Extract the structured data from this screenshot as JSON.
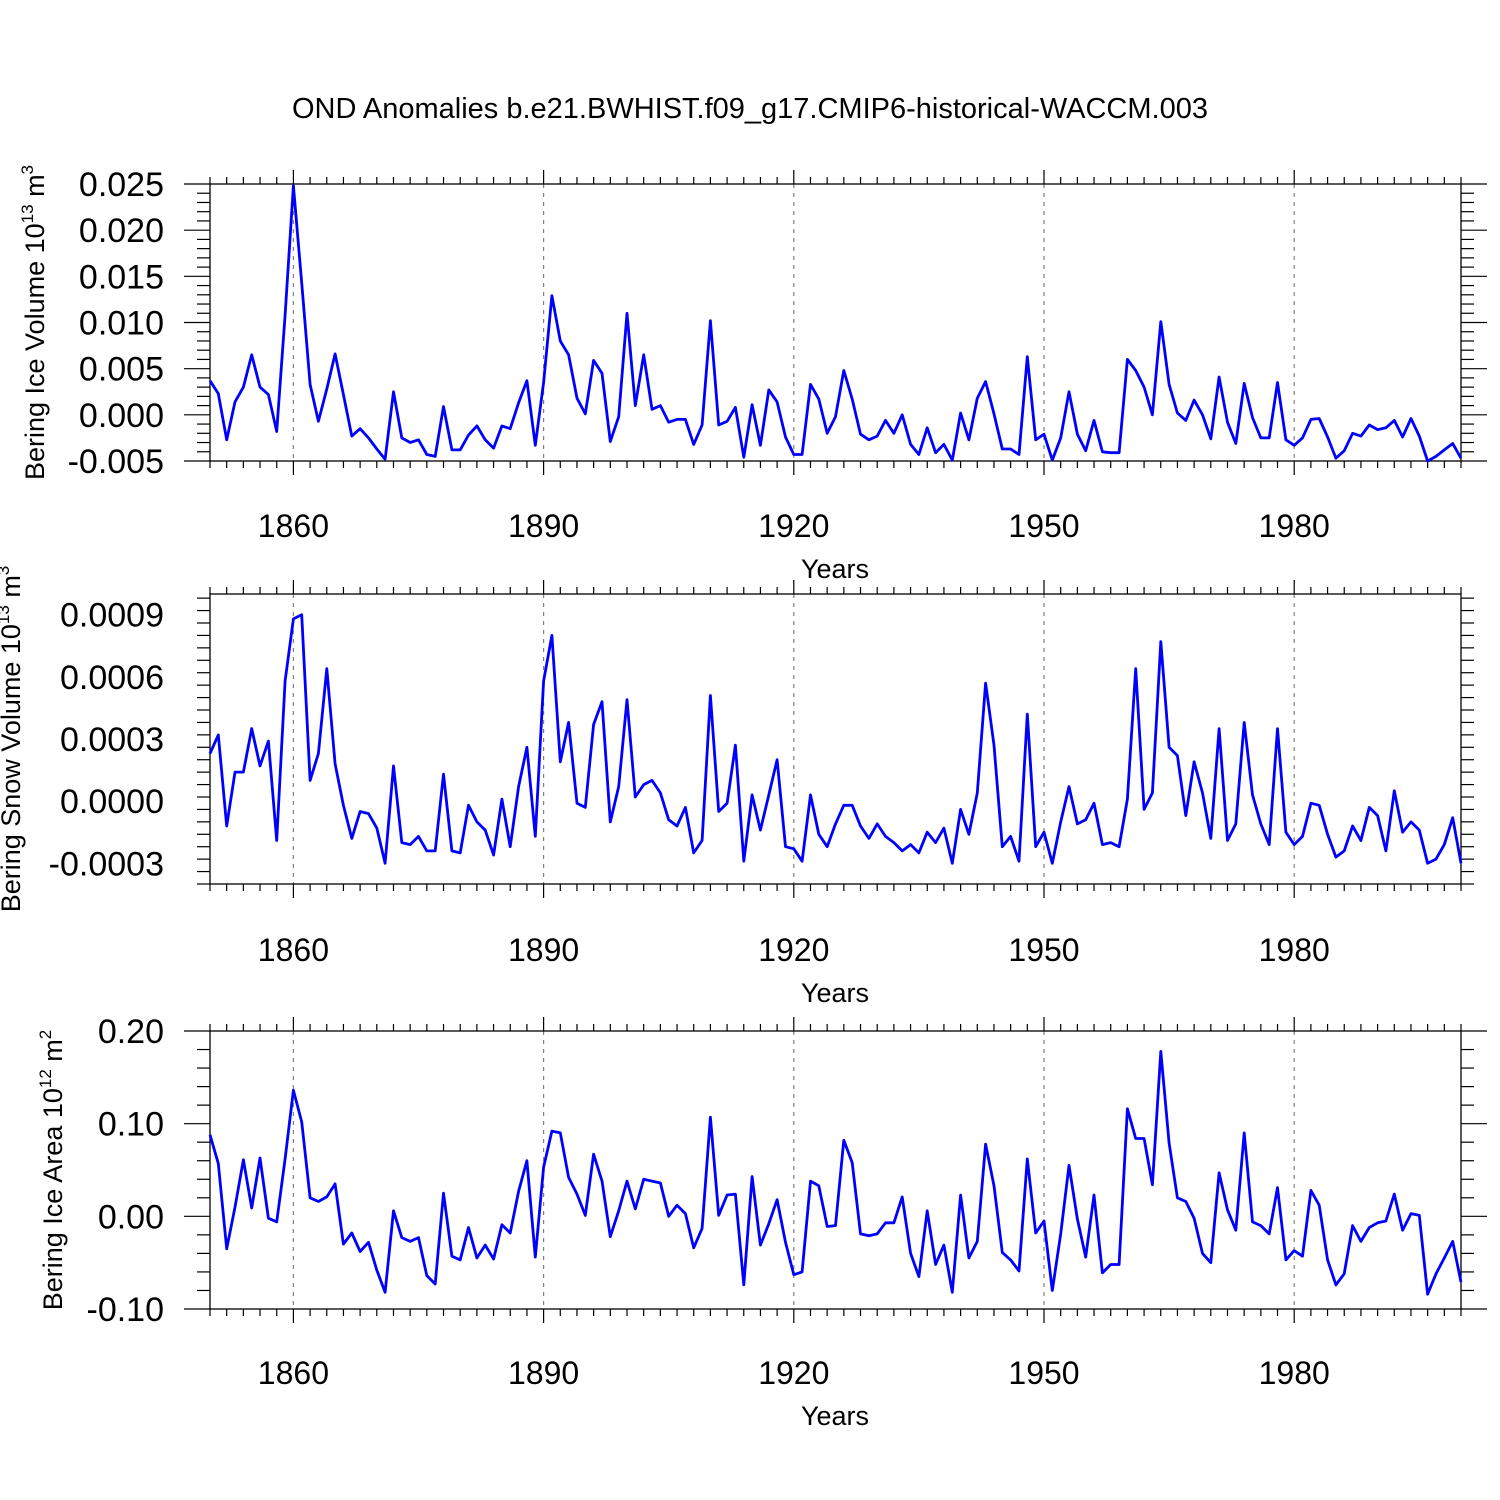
{
  "title": "OND Anomalies b.e21.BWHIST.f09_g17.CMIP6-historical-WACCM.003",
  "colors": {
    "series": "#0000ff",
    "grid": "#808080",
    "axis": "#000000"
  },
  "chart_data": [
    {
      "type": "line",
      "ylabel": "Bering Ice Volume 10",
      "ylabel_exp": "13",
      "ylabel_unit": " m",
      "ylabel_unit_exp": "3",
      "xlabel": "Years",
      "xlim": [
        1850,
        2000
      ],
      "ylim": [
        -0.005,
        0.025
      ],
      "yticks": [
        -0.005,
        0.0,
        0.005,
        0.01,
        0.015,
        0.02,
        0.025
      ],
      "yticklabels": [
        "-0.005",
        "0.000",
        "0.005",
        "0.010",
        "0.015",
        "0.020",
        "0.025"
      ],
      "xticks": [
        1860,
        1890,
        1920,
        1950,
        1980
      ],
      "xticklabels": [
        "1860",
        "1890",
        "1920",
        "1950",
        "1980"
      ],
      "x_start": 1850,
      "values": [
        0.0037,
        0.0023,
        -0.0027,
        0.0014,
        0.003,
        0.0065,
        0.003,
        0.0022,
        -0.0018,
        0.0108,
        0.0248,
        0.0143,
        0.0033,
        -0.0007,
        0.0028,
        0.0066,
        0.0022,
        -0.0023,
        -0.0015,
        -0.0025,
        -0.0037,
        -0.0048,
        0.0025,
        -0.0025,
        -0.003,
        -0.0027,
        -0.0043,
        -0.0045,
        0.0009,
        -0.0038,
        -0.0038,
        -0.0022,
        -0.0012,
        -0.0027,
        -0.0036,
        -0.0012,
        -0.0015,
        0.0013,
        0.0037,
        -0.0033,
        0.0035,
        0.0129,
        0.008,
        0.0065,
        0.0018,
        0.0001,
        0.0059,
        0.0045,
        -0.0029,
        -0.0002,
        0.011,
        0.001,
        0.0065,
        0.0006,
        0.001,
        -0.0008,
        -0.0005,
        -0.0005,
        -0.0032,
        -0.0011,
        0.0102,
        -0.0011,
        -0.0007,
        0.0008,
        -0.0046,
        0.0011,
        -0.0033,
        0.0027,
        0.0014,
        -0.0024,
        -0.0043,
        -0.0043,
        0.0033,
        0.0017,
        -0.002,
        -0.0002,
        0.0048,
        0.0017,
        -0.0021,
        -0.0027,
        -0.0023,
        -0.0006,
        -0.002,
        0.0,
        -0.0032,
        -0.0043,
        -0.0014,
        -0.0041,
        -0.0032,
        -0.0049,
        0.0002,
        -0.0027,
        0.0018,
        0.0036,
        0.0001,
        -0.0037,
        -0.0037,
        -0.0043,
        0.0063,
        -0.0027,
        -0.0021,
        -0.0049,
        -0.0025,
        0.0025,
        -0.0021,
        -0.0039,
        -0.0006,
        -0.004,
        -0.0041,
        -0.0041,
        0.006,
        0.0048,
        0.003,
        0.0,
        0.0101,
        0.0033,
        0.0002,
        -0.0006,
        0.0016,
        0.0,
        -0.0026,
        0.0041,
        -0.0008,
        -0.0031,
        0.0034,
        -0.0003,
        -0.0025,
        -0.0025,
        0.0035,
        -0.0027,
        -0.0033,
        -0.0025,
        -0.0005,
        -0.0004,
        -0.0024,
        -0.0047,
        -0.0039,
        -0.002,
        -0.0023,
        -0.0011,
        -0.0016,
        -0.0014,
        -0.0006,
        -0.0024,
        -0.0004,
        -0.0023,
        -0.005,
        -0.0045,
        -0.0038,
        -0.0031,
        -0.0047
      ]
    },
    {
      "type": "line",
      "ylabel": "Bering Snow Volume 10",
      "ylabel_exp": "13",
      "ylabel_unit": " m",
      "ylabel_unit_exp": "3",
      "xlabel": "Years",
      "xlim": [
        1850,
        2000
      ],
      "ylim": [
        -0.0004,
        0.001
      ],
      "yticks": [
        -0.0003,
        0.0,
        0.0003,
        0.0006,
        0.0009
      ],
      "yticklabels": [
        "-0.0003",
        "0.0000",
        "0.0003",
        "0.0006",
        "0.0009"
      ],
      "xticks": [
        1860,
        1890,
        1920,
        1950,
        1980
      ],
      "xticklabels": [
        "1860",
        "1890",
        "1920",
        "1950",
        "1980"
      ],
      "x_start": 1850,
      "values": [
        0.00023,
        0.00032,
        -0.00012,
        0.00014,
        0.00014,
        0.00035,
        0.00017,
        0.00029,
        -0.00019,
        0.00058,
        0.00088,
        0.0009,
        0.0001,
        0.00023,
        0.00064,
        0.00018,
        -2e-05,
        -0.00018,
        -5e-05,
        -6e-05,
        -0.00013,
        -0.0003,
        0.00017,
        -0.0002,
        -0.00021,
        -0.00017,
        -0.00024,
        -0.00024,
        0.00013,
        -0.00024,
        -0.00025,
        -2e-05,
        -0.0001,
        -0.00014,
        -0.00026,
        1e-05,
        -0.00022,
        7e-05,
        0.00026,
        -0.00017,
        0.00058,
        0.0008,
        0.00019,
        0.00038,
        -1e-05,
        -3e-05,
        0.00037,
        0.00048,
        -0.0001,
        7e-05,
        0.00049,
        2e-05,
        8e-05,
        0.0001,
        4e-05,
        -9e-05,
        -0.00012,
        -3e-05,
        -0.00025,
        -0.00019,
        0.00051,
        -5e-05,
        -1e-05,
        0.00027,
        -0.00029,
        3e-05,
        -0.00014,
        3e-05,
        0.0002,
        -0.00022,
        -0.00023,
        -0.00029,
        3e-05,
        -0.00016,
        -0.00022,
        -0.00011,
        -2e-05,
        -2e-05,
        -0.00012,
        -0.00018,
        -0.00011,
        -0.00017,
        -0.0002,
        -0.00024,
        -0.00021,
        -0.00025,
        -0.00015,
        -0.0002,
        -0.00013,
        -0.0003,
        -4e-05,
        -0.00016,
        4e-05,
        0.00057,
        0.00027,
        -0.00022,
        -0.00017,
        -0.00029,
        0.00042,
        -0.00022,
        -0.00015,
        -0.0003,
        -0.0001,
        7e-05,
        -0.00011,
        -9e-05,
        -1e-05,
        -0.00021,
        -0.0002,
        -0.00022,
        1e-05,
        0.00064,
        -4e-05,
        4e-05,
        0.00077,
        0.00026,
        0.00022,
        -7e-05,
        0.00019,
        4e-05,
        -0.00018,
        0.00035,
        -0.00019,
        -0.00011,
        0.00038,
        3e-05,
        -0.00011,
        -0.00021,
        0.00035,
        -0.00015,
        -0.00021,
        -0.00017,
        -1e-05,
        -2e-05,
        -0.00016,
        -0.00027,
        -0.00024,
        -0.00012,
        -0.00019,
        -3e-05,
        -7e-05,
        -0.00024,
        5e-05,
        -0.00015,
        -0.0001,
        -0.00014,
        -0.0003,
        -0.00028,
        -0.00021,
        -8e-05,
        -0.0003
      ]
    },
    {
      "type": "line",
      "ylabel": "Bering Ice Area 10",
      "ylabel_exp": "12",
      "ylabel_unit": " m",
      "ylabel_unit_exp": "2",
      "xlabel": "Years",
      "xlim": [
        1850,
        2000
      ],
      "ylim": [
        -0.1,
        0.2
      ],
      "yticks": [
        -0.1,
        0.0,
        0.1,
        0.2
      ],
      "yticklabels": [
        "-0.10",
        "0.00",
        "0.10",
        "0.20"
      ],
      "xticks": [
        1860,
        1890,
        1920,
        1950,
        1980
      ],
      "xticklabels": [
        "1860",
        "1890",
        "1920",
        "1950",
        "1980"
      ],
      "x_start": 1850,
      "values": [
        0.088,
        0.057,
        -0.035,
        0.01,
        0.061,
        0.009,
        0.063,
        -0.002,
        -0.006,
        0.062,
        0.136,
        0.102,
        0.02,
        0.016,
        0.021,
        0.035,
        -0.03,
        -0.018,
        -0.038,
        -0.028,
        -0.058,
        -0.082,
        0.006,
        -0.023,
        -0.027,
        -0.023,
        -0.064,
        -0.073,
        0.025,
        -0.043,
        -0.047,
        -0.012,
        -0.045,
        -0.031,
        -0.046,
        -0.009,
        -0.018,
        0.027,
        0.06,
        -0.044,
        0.053,
        0.092,
        0.09,
        0.042,
        0.024,
        0.001,
        0.067,
        0.038,
        -0.022,
        0.006,
        0.038,
        0.008,
        0.04,
        0.038,
        0.036,
        0.0,
        0.012,
        0.003,
        -0.034,
        -0.013,
        0.107,
        0.001,
        0.023,
        0.024,
        -0.074,
        0.043,
        -0.031,
        -0.008,
        0.018,
        -0.028,
        -0.063,
        -0.06,
        0.038,
        0.033,
        -0.011,
        -0.01,
        0.082,
        0.058,
        -0.019,
        -0.021,
        -0.019,
        -0.007,
        -0.007,
        0.021,
        -0.04,
        -0.065,
        0.006,
        -0.052,
        -0.031,
        -0.082,
        0.023,
        -0.045,
        -0.027,
        0.078,
        0.033,
        -0.039,
        -0.047,
        -0.059,
        0.062,
        -0.018,
        -0.005,
        -0.08,
        -0.019,
        0.055,
        -0.003,
        -0.044,
        0.023,
        -0.061,
        -0.052,
        -0.052,
        0.116,
        0.084,
        0.084,
        0.034,
        0.178,
        0.079,
        0.02,
        0.016,
        -0.002,
        -0.04,
        -0.05,
        0.047,
        0.007,
        -0.015,
        0.09,
        -0.006,
        -0.01,
        -0.019,
        0.031,
        -0.047,
        -0.037,
        -0.043,
        0.028,
        0.012,
        -0.047,
        -0.074,
        -0.062,
        -0.01,
        -0.027,
        -0.012,
        -0.007,
        -0.005,
        0.024,
        -0.015,
        0.003,
        0.001,
        -0.084,
        -0.062,
        -0.045,
        -0.027,
        -0.071
      ]
    }
  ]
}
